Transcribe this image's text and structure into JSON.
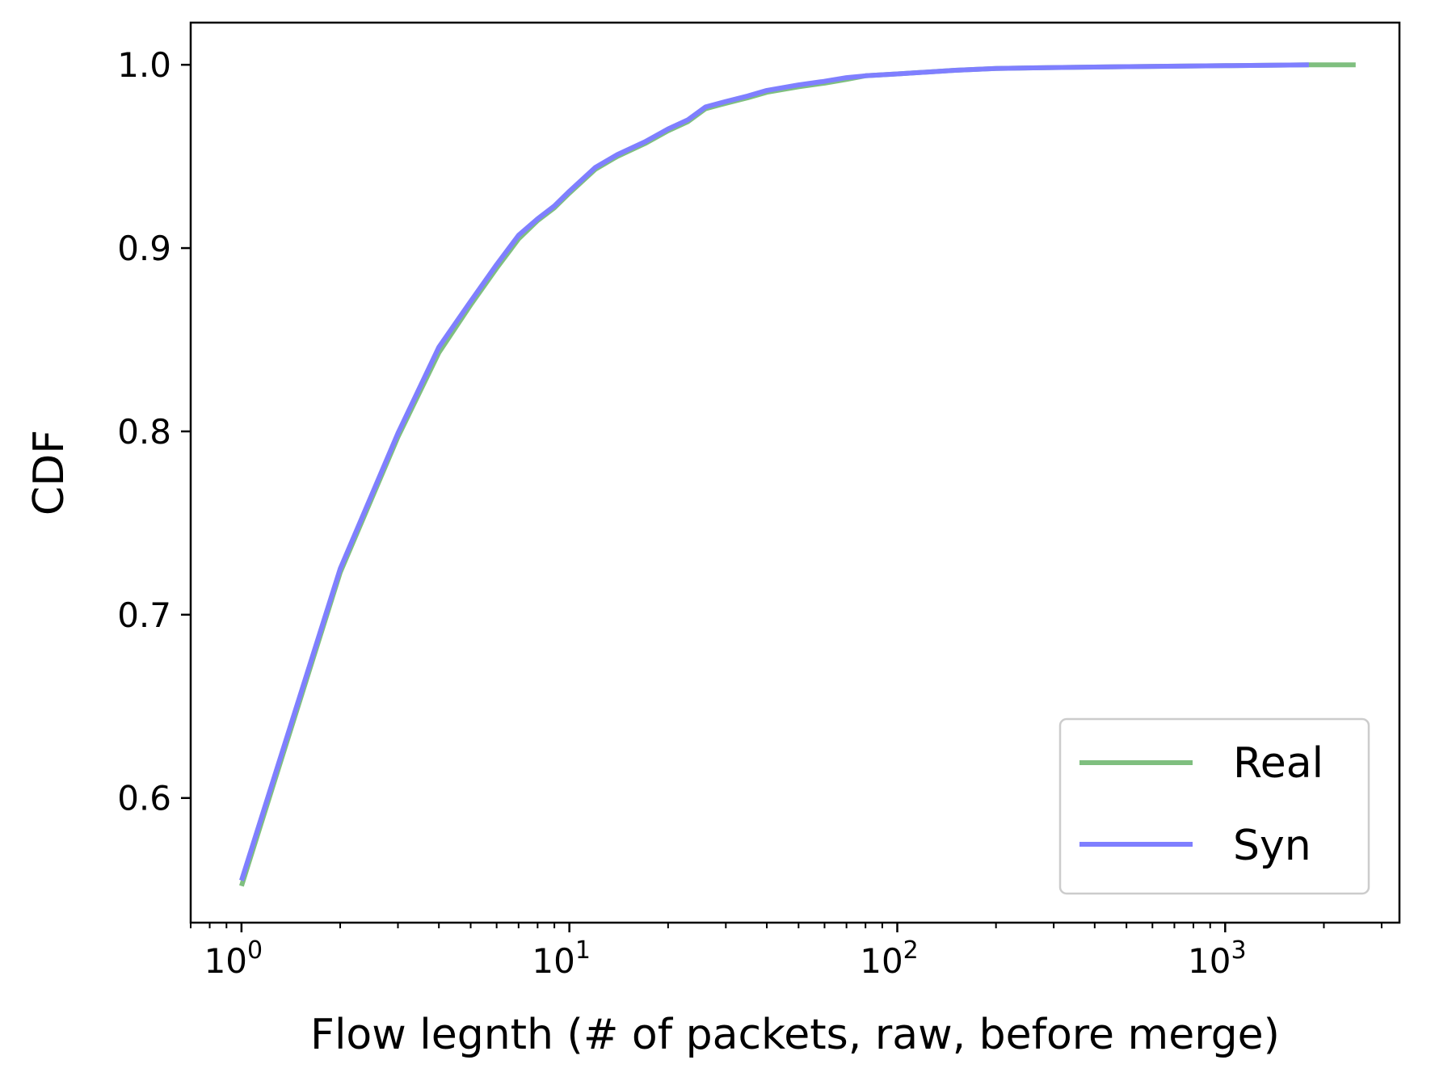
{
  "chart_data": {
    "type": "line",
    "title": "",
    "xlabel": "Flow legnth (# of packets, raw, before merge)",
    "ylabel": "CDF",
    "xscale": "log",
    "xlim": [
      0.7,
      3400
    ],
    "ylim": [
      0.532,
      1.023
    ],
    "x_ticks": [
      {
        "value": 1,
        "base": "10",
        "exp": "0"
      },
      {
        "value": 10,
        "base": "10",
        "exp": "1"
      },
      {
        "value": 100,
        "base": "10",
        "exp": "2"
      },
      {
        "value": 1000,
        "base": "10",
        "exp": "3"
      }
    ],
    "y_ticks": [
      {
        "value": 0.6,
        "label": "0.6"
      },
      {
        "value": 0.7,
        "label": "0.7"
      },
      {
        "value": 0.8,
        "label": "0.8"
      },
      {
        "value": 0.9,
        "label": "0.9"
      },
      {
        "value": 1.0,
        "label": "1.0"
      }
    ],
    "grid": false,
    "legend_position": "bottom-right",
    "series": [
      {
        "name": "Real",
        "color": "#7fbf7f",
        "points": [
          [
            1,
            0.552
          ],
          [
            2,
            0.723
          ],
          [
            3,
            0.797
          ],
          [
            4,
            0.843
          ],
          [
            5,
            0.869
          ],
          [
            6,
            0.889
          ],
          [
            7,
            0.905
          ],
          [
            8,
            0.915
          ],
          [
            9,
            0.922
          ],
          [
            10,
            0.93
          ],
          [
            12,
            0.943
          ],
          [
            14,
            0.95
          ],
          [
            17,
            0.957
          ],
          [
            20,
            0.964
          ],
          [
            23,
            0.969
          ],
          [
            26,
            0.976
          ],
          [
            30,
            0.979
          ],
          [
            35,
            0.982
          ],
          [
            40,
            0.985
          ],
          [
            50,
            0.988
          ],
          [
            60,
            0.99
          ],
          [
            70,
            0.992
          ],
          [
            80,
            0.994
          ],
          [
            100,
            0.995
          ],
          [
            150,
            0.997
          ],
          [
            200,
            0.998
          ],
          [
            300,
            0.9985
          ],
          [
            500,
            0.999
          ],
          [
            1000,
            0.9995
          ],
          [
            1800,
            1.0
          ],
          [
            2500,
            1.0
          ]
        ]
      },
      {
        "name": "Syn",
        "color": "#7f7fff",
        "points": [
          [
            1,
            0.555
          ],
          [
            2,
            0.725
          ],
          [
            3,
            0.799
          ],
          [
            4,
            0.846
          ],
          [
            5,
            0.871
          ],
          [
            6,
            0.891
          ],
          [
            7,
            0.907
          ],
          [
            8,
            0.916
          ],
          [
            9,
            0.923
          ],
          [
            10,
            0.931
          ],
          [
            12,
            0.944
          ],
          [
            14,
            0.951
          ],
          [
            17,
            0.958
          ],
          [
            20,
            0.965
          ],
          [
            23,
            0.97
          ],
          [
            26,
            0.977
          ],
          [
            30,
            0.98
          ],
          [
            35,
            0.983
          ],
          [
            40,
            0.986
          ],
          [
            50,
            0.989
          ],
          [
            60,
            0.991
          ],
          [
            70,
            0.993
          ],
          [
            80,
            0.994
          ],
          [
            100,
            0.995
          ],
          [
            150,
            0.997
          ],
          [
            200,
            0.998
          ],
          [
            300,
            0.9985
          ],
          [
            500,
            0.999
          ],
          [
            1000,
            0.9995
          ],
          [
            1800,
            1.0
          ]
        ]
      }
    ]
  }
}
